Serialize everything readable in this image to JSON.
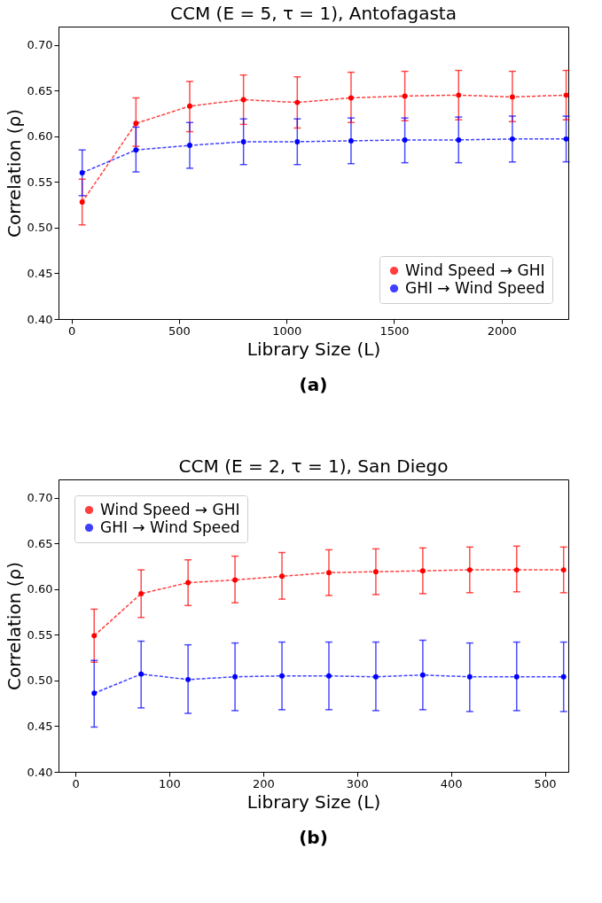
{
  "chart_data": [
    {
      "type": "line",
      "title": "CCM (E = 5, τ = 1), Antofagasta",
      "xlabel": "Library Size (L)",
      "ylabel": "Correlation (ρ)",
      "annotations": [
        "(a)"
      ],
      "x": [
        50,
        300,
        550,
        800,
        1050,
        1300,
        1550,
        1800,
        2050,
        2300
      ],
      "series": [
        {
          "name": "Wind Speed → GHI",
          "color": "#ff0000",
          "values": [
            0.528,
            0.614,
            0.633,
            0.64,
            0.637,
            0.642,
            0.644,
            0.645,
            0.643,
            0.645
          ],
          "errors": [
            [
              0.503,
              0.553
            ],
            [
              0.589,
              0.642
            ],
            [
              0.605,
              0.66
            ],
            [
              0.613,
              0.667
            ],
            [
              0.609,
              0.665
            ],
            [
              0.615,
              0.67
            ],
            [
              0.617,
              0.671
            ],
            [
              0.618,
              0.672
            ],
            [
              0.616,
              0.671
            ],
            [
              0.618,
              0.672
            ]
          ]
        },
        {
          "name": "GHI → Wind Speed",
          "color": "#0000ff",
          "values": [
            0.56,
            0.585,
            0.59,
            0.594,
            0.594,
            0.595,
            0.596,
            0.596,
            0.597,
            0.597
          ],
          "errors": [
            [
              0.535,
              0.585
            ],
            [
              0.561,
              0.61
            ],
            [
              0.565,
              0.615
            ],
            [
              0.569,
              0.619
            ],
            [
              0.569,
              0.619
            ],
            [
              0.57,
              0.62
            ],
            [
              0.571,
              0.62
            ],
            [
              0.571,
              0.621
            ],
            [
              0.572,
              0.622
            ],
            [
              0.572,
              0.622
            ]
          ]
        }
      ],
      "xlim": [
        -60,
        2310
      ],
      "xticks": [
        0,
        500,
        1000,
        1500,
        2000
      ],
      "ylim": [
        0.4,
        0.72
      ],
      "yticks": [
        {
          "value": 0.4,
          "label": "0.40"
        },
        {
          "value": 0.45,
          "label": "0.45"
        },
        {
          "value": 0.5,
          "label": "0.50"
        },
        {
          "value": 0.55,
          "label": "0.55"
        },
        {
          "value": 0.6,
          "label": "0.60"
        },
        {
          "value": 0.65,
          "label": "0.65"
        },
        {
          "value": 0.7,
          "label": "0.70"
        }
      ],
      "legend": "bottom right",
      "grid": false,
      "marker": "circle",
      "line_style": "dashed"
    },
    {
      "type": "line",
      "title": "CCM (E = 2, τ = 1), San Diego",
      "xlabel": "Library Size (L)",
      "ylabel": "Correlation (ρ)",
      "annotations": [
        "(b)"
      ],
      "x": [
        20,
        70,
        120,
        170,
        220,
        270,
        320,
        370,
        420,
        470,
        520
      ],
      "series": [
        {
          "name": "Wind Speed → GHI",
          "color": "#ff0000",
          "values": [
            0.549,
            0.595,
            0.607,
            0.61,
            0.614,
            0.618,
            0.619,
            0.62,
            0.621,
            0.621,
            0.621
          ],
          "errors": [
            [
              0.52,
              0.578
            ],
            [
              0.569,
              0.621
            ],
            [
              0.582,
              0.632
            ],
            [
              0.585,
              0.636
            ],
            [
              0.589,
              0.64
            ],
            [
              0.593,
              0.643
            ],
            [
              0.594,
              0.644
            ],
            [
              0.595,
              0.645
            ],
            [
              0.596,
              0.646
            ],
            [
              0.597,
              0.647
            ],
            [
              0.596,
              0.646
            ]
          ]
        },
        {
          "name": "GHI → Wind Speed",
          "color": "#0000ff",
          "values": [
            0.486,
            0.507,
            0.501,
            0.504,
            0.505,
            0.505,
            0.504,
            0.506,
            0.504,
            0.504,
            0.504
          ],
          "errors": [
            [
              0.449,
              0.522
            ],
            [
              0.47,
              0.543
            ],
            [
              0.464,
              0.539
            ],
            [
              0.467,
              0.541
            ],
            [
              0.468,
              0.542
            ],
            [
              0.468,
              0.542
            ],
            [
              0.467,
              0.542
            ],
            [
              0.468,
              0.544
            ],
            [
              0.466,
              0.541
            ],
            [
              0.467,
              0.542
            ],
            [
              0.466,
              0.542
            ]
          ]
        }
      ],
      "xlim": [
        -18,
        525
      ],
      "xticks": [
        0,
        100,
        200,
        300,
        400,
        500
      ],
      "ylim": [
        0.4,
        0.72
      ],
      "yticks": [
        {
          "value": 0.4,
          "label": "0.40"
        },
        {
          "value": 0.45,
          "label": "0.45"
        },
        {
          "value": 0.5,
          "label": "0.50"
        },
        {
          "value": 0.55,
          "label": "0.55"
        },
        {
          "value": 0.6,
          "label": "0.60"
        },
        {
          "value": 0.65,
          "label": "0.65"
        },
        {
          "value": 0.7,
          "label": "0.70"
        }
      ],
      "legend": "top left",
      "grid": false,
      "marker": "circle",
      "line_style": "dashed"
    }
  ]
}
